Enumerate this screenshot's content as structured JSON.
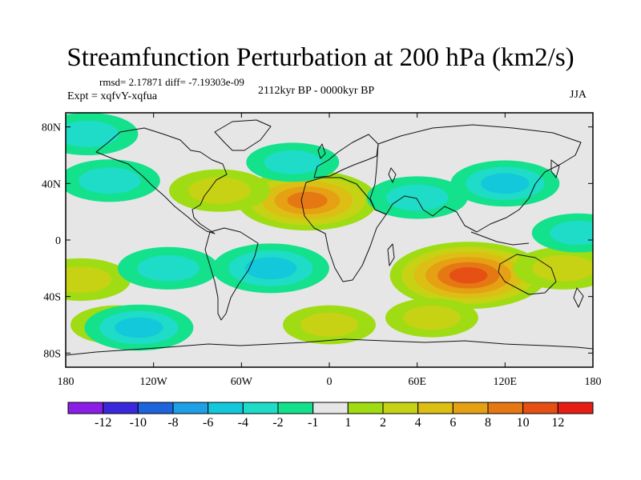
{
  "title": "Streamfunction Perturbation at 200 hPa (km2/s)",
  "stats_text": "rmsd= 2.17871  diff= -7.19303e-09",
  "experiment_text": "Expt = xqfvY-xqfua",
  "period_text": "2112kyr BP - 0000kyr BP",
  "season_text": "JJA",
  "lat_ticks": [
    {
      "lat": 80,
      "label": "80N"
    },
    {
      "lat": 40,
      "label": "40N"
    },
    {
      "lat": 0,
      "label": "0"
    },
    {
      "lat": -40,
      "label": "40S"
    },
    {
      "lat": -80,
      "label": "80S"
    }
  ],
  "lon_ticks": [
    {
      "lon": -180,
      "label": "180"
    },
    {
      "lon": -120,
      "label": "120W"
    },
    {
      "lon": -60,
      "label": "60W"
    },
    {
      "lon": 0,
      "label": "0"
    },
    {
      "lon": 60,
      "label": "60E"
    },
    {
      "lon": 120,
      "label": "120E"
    },
    {
      "lon": 180,
      "label": "180"
    }
  ],
  "colorbar": {
    "colors": [
      "#8b1ee6",
      "#3c28dc",
      "#1e64dc",
      "#1ea0e6",
      "#14c8dc",
      "#1edcc8",
      "#14e18c",
      "#e6e6e6",
      "#a0dc14",
      "#c8d214",
      "#dcbe14",
      "#e6a014",
      "#e67814",
      "#e65014",
      "#e61e14"
    ],
    "labels": [
      "-12",
      "-10",
      "-8",
      "-6",
      "-4",
      "-2",
      "-1",
      "1",
      "2",
      "4",
      "6",
      "8",
      "10",
      "12"
    ]
  },
  "chart_data": {
    "type": "heatmap",
    "variable": "Streamfunction Perturbation at 200 hPa",
    "units": "km2/s",
    "season": "JJA",
    "experiment": "xqfvY-xqfua",
    "period": "2112kyr BP - 0000kyr BP",
    "rmsd": 2.17871,
    "diff": -7.19303e-09,
    "lon_range": [
      -180,
      180
    ],
    "lat_range": [
      -90,
      90
    ],
    "contour_levels": [
      -12,
      -10,
      -8,
      -6,
      -4,
      -2,
      -1,
      1,
      2,
      4,
      6,
      8,
      10,
      12
    ],
    "features": [
      {
        "region": "North Atlantic / western Europe",
        "lon": -15,
        "lat": 28,
        "peak": 8
      },
      {
        "region": "eastern North America",
        "lon": -75,
        "lat": 35,
        "peak": 3
      },
      {
        "region": "Indian Ocean",
        "lon": 95,
        "lat": -25,
        "peak": 10
      },
      {
        "region": "southern Indian Ocean",
        "lon": 70,
        "lat": -55,
        "peak": 2
      },
      {
        "region": "South Atlantic",
        "lon": 0,
        "lat": -60,
        "peak": 2
      },
      {
        "region": "southern Pacific",
        "lon": -145,
        "lat": -60,
        "peak": 2
      },
      {
        "region": "western South Pacific",
        "lon": -170,
        "lat": -28,
        "peak": 3
      },
      {
        "region": "Australia / Tasman Sea",
        "lon": 160,
        "lat": -20,
        "peak": 3
      },
      {
        "region": "South America / Atlantic",
        "lon": -40,
        "lat": -20,
        "peak": -5
      },
      {
        "region": "South Pacific",
        "lon": -110,
        "lat": -20,
        "peak": -3
      },
      {
        "region": "South Pacific (high lat)",
        "lon": -130,
        "lat": -62,
        "peak": -4
      },
      {
        "region": "Central Asia / Arabia",
        "lon": 60,
        "lat": 30,
        "peak": -3
      },
      {
        "region": "Siberia / East Asia",
        "lon": 120,
        "lat": 40,
        "peak": -4
      },
      {
        "region": "North Pacific",
        "lon": -150,
        "lat": 42,
        "peak": -3
      },
      {
        "region": "northern Pacific",
        "lon": -165,
        "lat": 75,
        "peak": -3
      },
      {
        "region": "North Atlantic (high lat)",
        "lon": -25,
        "lat": 55,
        "peak": -2
      },
      {
        "region": "tropical Pacific",
        "lon": 170,
        "lat": 5,
        "peak": -2
      }
    ]
  }
}
